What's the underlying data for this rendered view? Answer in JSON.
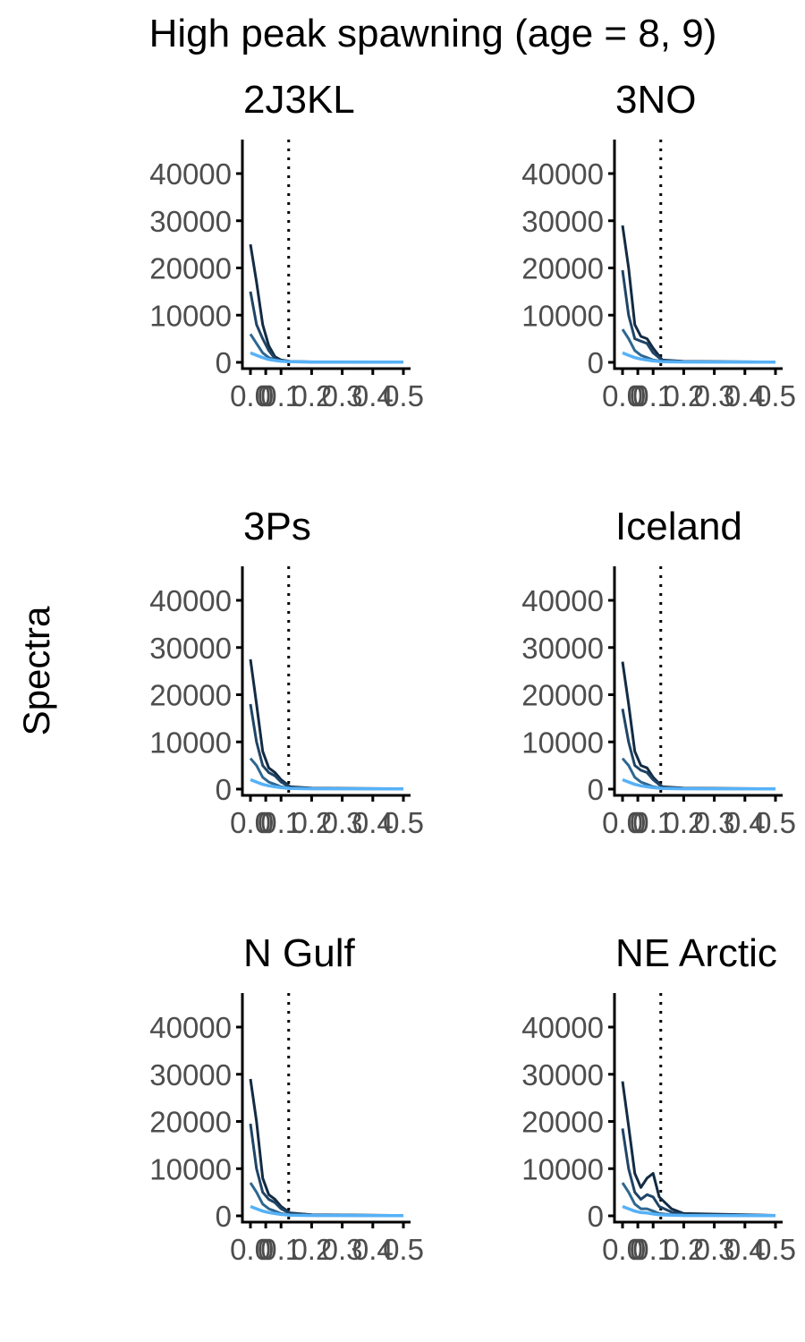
{
  "title": "High peak spawning (age = 8, 9)",
  "ylabel": "Spectra",
  "colors": {
    "series": [
      "#132b43",
      "#1f4466",
      "#2e6791",
      "#56b1f7"
    ]
  },
  "chart_data": {
    "type": "line",
    "title": "High peak spawning (age = 8, 9)",
    "ylabel": "Spectra",
    "xlim": [
      0,
      0.5
    ],
    "ylim": [
      0,
      45000
    ],
    "xticks": [
      0.0,
      0.05,
      0.1,
      0.2,
      0.3,
      0.4,
      0.5
    ],
    "xtick_labels": [
      "0.0",
      "0",
      "0.1",
      "0.2",
      "0.3",
      "0.4",
      "0.5"
    ],
    "yticks": [
      0,
      10000,
      20000,
      30000,
      40000
    ],
    "ytick_labels": [
      "0",
      "10000",
      "20000",
      "30000",
      "40000"
    ],
    "reference_line_x": 0.125,
    "panels": [
      {
        "name": "2J3KL",
        "series": [
          {
            "x": [
              0.0,
              0.02,
              0.04,
              0.06,
              0.08,
              0.1,
              0.13,
              0.2,
              0.5
            ],
            "y": [
              25000,
              17000,
              8000,
              3500,
              1200,
              500,
              200,
              100,
              50
            ]
          },
          {
            "x": [
              0.0,
              0.02,
              0.04,
              0.06,
              0.08,
              0.1,
              0.13,
              0.2,
              0.5
            ],
            "y": [
              15000,
              8000,
              5000,
              2500,
              800,
              300,
              150,
              80,
              40
            ]
          },
          {
            "x": [
              0.0,
              0.02,
              0.04,
              0.06,
              0.08,
              0.1,
              0.13,
              0.2,
              0.5
            ],
            "y": [
              6000,
              4000,
              2000,
              1000,
              500,
              250,
              120,
              60,
              30
            ]
          },
          {
            "x": [
              0.0,
              0.02,
              0.04,
              0.06,
              0.08,
              0.1,
              0.13,
              0.2,
              0.5
            ],
            "y": [
              2000,
              1500,
              1000,
              600,
              400,
              250,
              150,
              80,
              30
            ]
          }
        ]
      },
      {
        "name": "3NO",
        "series": [
          {
            "x": [
              0.0,
              0.02,
              0.04,
              0.06,
              0.08,
              0.1,
              0.13,
              0.2,
              0.5
            ],
            "y": [
              29000,
              20000,
              8000,
              5500,
              5000,
              3000,
              500,
              200,
              80
            ]
          },
          {
            "x": [
              0.0,
              0.02,
              0.04,
              0.06,
              0.08,
              0.1,
              0.13,
              0.2,
              0.5
            ],
            "y": [
              19500,
              10000,
              5000,
              4500,
              4000,
              2000,
              400,
              150,
              60
            ]
          },
          {
            "x": [
              0.0,
              0.02,
              0.04,
              0.06,
              0.08,
              0.1,
              0.13,
              0.2,
              0.5
            ],
            "y": [
              7000,
              5000,
              2500,
              1500,
              1000,
              500,
              200,
              100,
              40
            ]
          },
          {
            "x": [
              0.0,
              0.02,
              0.04,
              0.06,
              0.08,
              0.1,
              0.13,
              0.2,
              0.5
            ],
            "y": [
              2000,
              1500,
              1000,
              700,
              500,
              300,
              150,
              80,
              30
            ]
          }
        ]
      },
      {
        "name": "3Ps",
        "series": [
          {
            "x": [
              0.0,
              0.02,
              0.04,
              0.06,
              0.08,
              0.1,
              0.13,
              0.2,
              0.5
            ],
            "y": [
              27500,
              18000,
              8000,
              4500,
              3500,
              2000,
              500,
              200,
              80
            ]
          },
          {
            "x": [
              0.0,
              0.02,
              0.04,
              0.06,
              0.08,
              0.1,
              0.13,
              0.2,
              0.5
            ],
            "y": [
              18000,
              10000,
              5000,
              3500,
              2800,
              1500,
              400,
              150,
              60
            ]
          },
          {
            "x": [
              0.0,
              0.02,
              0.04,
              0.06,
              0.08,
              0.1,
              0.13,
              0.2,
              0.5
            ],
            "y": [
              6500,
              5000,
              2500,
              1500,
              1000,
              500,
              200,
              100,
              40
            ]
          },
          {
            "x": [
              0.0,
              0.02,
              0.04,
              0.06,
              0.08,
              0.1,
              0.13,
              0.2,
              0.5
            ],
            "y": [
              2000,
              1500,
              1000,
              700,
              500,
              300,
              150,
              80,
              30
            ]
          }
        ]
      },
      {
        "name": "Iceland",
        "series": [
          {
            "x": [
              0.0,
              0.02,
              0.04,
              0.06,
              0.08,
              0.1,
              0.13,
              0.2,
              0.5
            ],
            "y": [
              27000,
              18000,
              8000,
              5000,
              4500,
              2500,
              500,
              200,
              80
            ]
          },
          {
            "x": [
              0.0,
              0.02,
              0.04,
              0.06,
              0.08,
              0.1,
              0.13,
              0.2,
              0.5
            ],
            "y": [
              17000,
              10000,
              5000,
              4000,
              3500,
              2000,
              400,
              150,
              60
            ]
          },
          {
            "x": [
              0.0,
              0.02,
              0.04,
              0.06,
              0.08,
              0.1,
              0.13,
              0.2,
              0.5
            ],
            "y": [
              6500,
              5000,
              2500,
              1500,
              1000,
              500,
              200,
              100,
              40
            ]
          },
          {
            "x": [
              0.0,
              0.02,
              0.04,
              0.06,
              0.08,
              0.1,
              0.13,
              0.2,
              0.5
            ],
            "y": [
              2000,
              1500,
              1000,
              700,
              500,
              300,
              150,
              80,
              30
            ]
          }
        ]
      },
      {
        "name": "N Gulf",
        "series": [
          {
            "x": [
              0.0,
              0.02,
              0.04,
              0.06,
              0.08,
              0.1,
              0.13,
              0.2,
              0.5
            ],
            "y": [
              29000,
              20000,
              8000,
              4500,
              3500,
              2000,
              600,
              250,
              80
            ]
          },
          {
            "x": [
              0.0,
              0.02,
              0.04,
              0.06,
              0.08,
              0.1,
              0.13,
              0.2,
              0.5
            ],
            "y": [
              19500,
              10000,
              5000,
              3500,
              2800,
              1500,
              500,
              200,
              60
            ]
          },
          {
            "x": [
              0.0,
              0.02,
              0.04,
              0.06,
              0.08,
              0.1,
              0.13,
              0.2,
              0.5
            ],
            "y": [
              7000,
              5000,
              2500,
              1500,
              1000,
              500,
              200,
              100,
              40
            ]
          },
          {
            "x": [
              0.0,
              0.02,
              0.04,
              0.06,
              0.08,
              0.1,
              0.13,
              0.2,
              0.5
            ],
            "y": [
              2000,
              1500,
              1000,
              700,
              500,
              300,
              150,
              80,
              30
            ]
          }
        ]
      },
      {
        "name": "NE Arctic",
        "series": [
          {
            "x": [
              0.0,
              0.02,
              0.04,
              0.06,
              0.08,
              0.1,
              0.12,
              0.16,
              0.2,
              0.5
            ],
            "y": [
              28500,
              19000,
              9000,
              6000,
              8000,
              9000,
              4000,
              1500,
              500,
              100
            ]
          },
          {
            "x": [
              0.0,
              0.02,
              0.04,
              0.06,
              0.08,
              0.1,
              0.12,
              0.16,
              0.2,
              0.5
            ],
            "y": [
              18500,
              10000,
              5000,
              3500,
              4500,
              4000,
              2000,
              800,
              300,
              80
            ]
          },
          {
            "x": [
              0.0,
              0.02,
              0.04,
              0.06,
              0.08,
              0.1,
              0.12,
              0.16,
              0.2,
              0.5
            ],
            "y": [
              7000,
              5000,
              2500,
              1500,
              1500,
              1000,
              500,
              250,
              150,
              50
            ]
          },
          {
            "x": [
              0.0,
              0.02,
              0.04,
              0.06,
              0.08,
              0.1,
              0.12,
              0.16,
              0.2,
              0.5
            ],
            "y": [
              2000,
              1500,
              1000,
              700,
              600,
              400,
              250,
              150,
              80,
              30
            ]
          }
        ]
      }
    ]
  }
}
